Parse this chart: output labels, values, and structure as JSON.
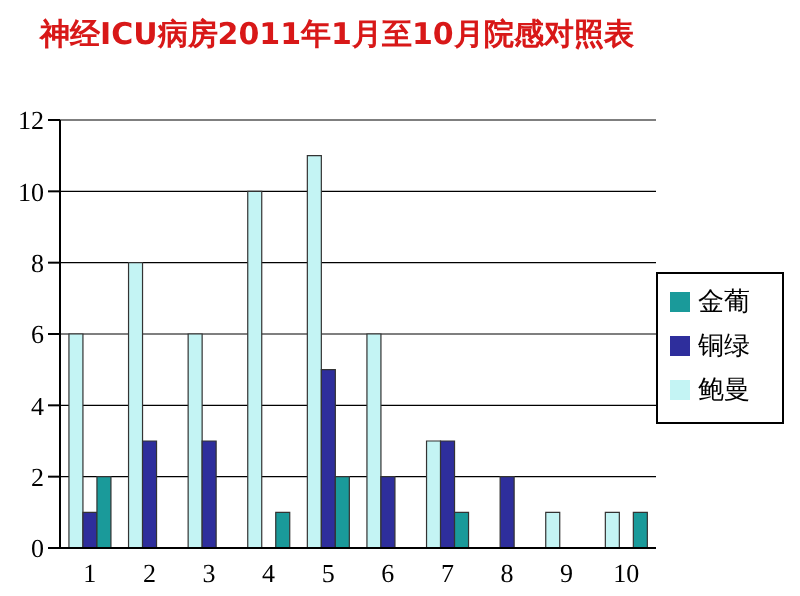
{
  "chart_data": {
    "type": "bar",
    "title": "神经ICU病房2011年1月至10月院感对照表",
    "categories": [
      "1",
      "2",
      "3",
      "4",
      "5",
      "6",
      "7",
      "8",
      "9",
      "10"
    ],
    "series": [
      {
        "name": "鲍曼",
        "color": "#c4f4f4",
        "values": [
          6,
          8,
          6,
          10,
          11,
          6,
          3,
          0,
          1,
          1
        ]
      },
      {
        "name": "铜绿",
        "color": "#2e2e9c",
        "values": [
          1,
          3,
          3,
          0,
          5,
          2,
          3,
          2,
          0,
          0
        ]
      },
      {
        "name": "金葡",
        "color": "#1a9a9a",
        "values": [
          2,
          0,
          0,
          1,
          2,
          0,
          1,
          0,
          0,
          1
        ]
      }
    ],
    "ylim": [
      0,
      12
    ],
    "yticks": [
      0,
      2,
      4,
      6,
      8,
      10,
      12
    ],
    "grid": "y",
    "legend": "right"
  }
}
